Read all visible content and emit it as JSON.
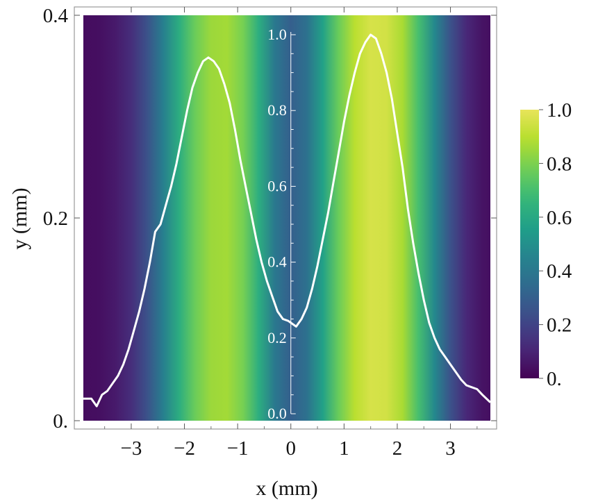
{
  "chart_data": {
    "type": "heatmap",
    "title": "",
    "xlabel": "x (mm)",
    "ylabel": "y (mm)",
    "xlim": [
      -3.9,
      3.75
    ],
    "ylim": [
      0.0,
      0.4
    ],
    "x_ticks": [
      -3,
      -2,
      -1,
      0,
      1,
      2,
      3
    ],
    "x_tick_labels": [
      "−3",
      "−2",
      "−1",
      "0",
      "1",
      "2",
      "3"
    ],
    "y_ticks": [
      0.0,
      0.2,
      0.4
    ],
    "y_tick_labels": [
      "0.",
      "0.2",
      "0.4"
    ],
    "heatmap": {
      "description_of_variation": "intensity varies along x only",
      "x": [
        -3.9,
        -3.6,
        -3.3,
        -3.0,
        -2.7,
        -2.4,
        -2.1,
        -1.8,
        -1.5,
        -1.2,
        -0.9,
        -0.6,
        -0.3,
        0.0,
        0.3,
        0.6,
        0.9,
        1.2,
        1.5,
        1.8,
        2.1,
        2.4,
        2.7,
        3.0,
        3.3,
        3.6,
        3.75
      ],
      "values": [
        0.03,
        0.04,
        0.07,
        0.13,
        0.25,
        0.43,
        0.62,
        0.77,
        0.85,
        0.86,
        0.79,
        0.62,
        0.4,
        0.3,
        0.37,
        0.57,
        0.77,
        0.9,
        0.96,
        0.95,
        0.87,
        0.7,
        0.47,
        0.25,
        0.11,
        0.05,
        0.04
      ]
    },
    "colorbar": {
      "colormap": "viridis",
      "range": [
        0.0,
        1.0
      ],
      "ticks": [
        0.0,
        0.2,
        0.4,
        0.6,
        0.8,
        1.0
      ],
      "tick_labels": [
        "0.",
        "0.2",
        "0.4",
        "0.6",
        "0.8",
        "1.0"
      ]
    },
    "profile_line": {
      "color": "#ffffff",
      "inner_axis_ticks": [
        0.0,
        0.2,
        0.4,
        0.6,
        0.8,
        1.0
      ],
      "inner_axis_tick_labels": [
        "0.0",
        "0.2",
        "0.4",
        "0.6",
        "0.8",
        "1.0"
      ],
      "x": [
        -3.9,
        -3.75,
        -3.65,
        -3.55,
        -3.45,
        -3.35,
        -3.25,
        -3.15,
        -3.05,
        -2.95,
        -2.85,
        -2.75,
        -2.65,
        -2.55,
        -2.45,
        -2.35,
        -2.25,
        -2.15,
        -2.05,
        -1.95,
        -1.85,
        -1.75,
        -1.65,
        -1.55,
        -1.45,
        -1.35,
        -1.25,
        -1.15,
        -1.05,
        -0.95,
        -0.85,
        -0.75,
        -0.65,
        -0.55,
        -0.45,
        -0.35,
        -0.25,
        -0.15,
        -0.05,
        0.1,
        0.2,
        0.3,
        0.4,
        0.5,
        0.6,
        0.7,
        0.8,
        0.9,
        1.0,
        1.1,
        1.2,
        1.3,
        1.4,
        1.5,
        1.6,
        1.7,
        1.8,
        1.9,
        2.0,
        2.1,
        2.2,
        2.3,
        2.4,
        2.5,
        2.6,
        2.7,
        2.8,
        2.9,
        3.0,
        3.1,
        3.2,
        3.3,
        3.4,
        3.5,
        3.6,
        3.75
      ],
      "y": [
        0.04,
        0.04,
        0.02,
        0.05,
        0.06,
        0.08,
        0.1,
        0.13,
        0.17,
        0.22,
        0.27,
        0.33,
        0.4,
        0.48,
        0.5,
        0.55,
        0.6,
        0.66,
        0.73,
        0.8,
        0.86,
        0.9,
        0.93,
        0.94,
        0.93,
        0.91,
        0.87,
        0.82,
        0.75,
        0.67,
        0.6,
        0.53,
        0.46,
        0.4,
        0.35,
        0.31,
        0.27,
        0.25,
        0.245,
        0.23,
        0.25,
        0.28,
        0.33,
        0.39,
        0.46,
        0.53,
        0.61,
        0.69,
        0.77,
        0.84,
        0.9,
        0.95,
        0.98,
        1.0,
        0.99,
        0.95,
        0.9,
        0.83,
        0.74,
        0.65,
        0.54,
        0.45,
        0.37,
        0.3,
        0.24,
        0.2,
        0.17,
        0.15,
        0.13,
        0.11,
        0.09,
        0.075,
        0.07,
        0.065,
        0.05,
        0.03
      ]
    }
  }
}
